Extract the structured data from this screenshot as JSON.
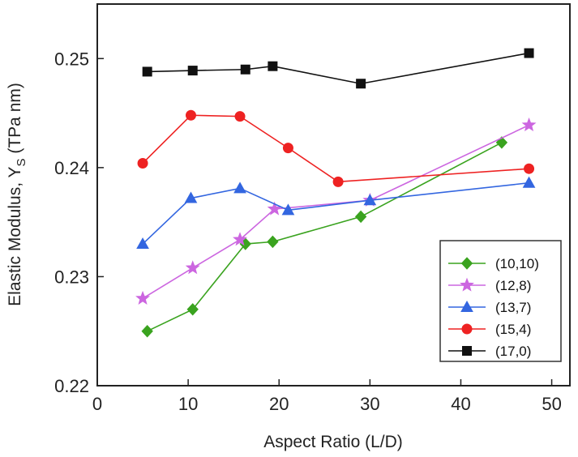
{
  "chart_data": {
    "type": "line",
    "xlabel": "Aspect Ratio (L/D)",
    "ylabel_main": "Elastic Modulus, Y",
    "ylabel_sub": "S",
    "ylabel_unit": " (TPa nm)",
    "xlim": [
      0,
      52
    ],
    "ylim": [
      0.22,
      0.255
    ],
    "x_ticks": [
      0,
      10,
      20,
      30,
      40,
      50
    ],
    "x_tick_labels": [
      "0",
      "10",
      "20",
      "30",
      "40",
      "50"
    ],
    "y_ticks": [
      0.22,
      0.23,
      0.24,
      0.25
    ],
    "y_tick_labels": [
      "0.22",
      "0.23",
      "0.24",
      "0.25"
    ],
    "legend_position": "bottom-right",
    "grid": false,
    "series": [
      {
        "name": "(10,10)",
        "color": "#3aa31f",
        "marker": "diamond",
        "x": [
          5.5,
          10.5,
          16.3,
          19.3,
          29.0,
          44.5
        ],
        "y": [
          0.225,
          0.227,
          0.233,
          0.2332,
          0.2355,
          0.2423
        ]
      },
      {
        "name": "(12,8)",
        "color": "#cc66e0",
        "marker": "star",
        "x": [
          5.0,
          10.5,
          15.7,
          19.5,
          30.0,
          47.5
        ],
        "y": [
          0.228,
          0.2308,
          0.2334,
          0.2362,
          0.237,
          0.2439
        ]
      },
      {
        "name": "(13,7)",
        "color": "#3366e0",
        "marker": "triangle",
        "x": [
          5.0,
          10.3,
          15.7,
          21.0,
          30.0,
          47.5
        ],
        "y": [
          0.233,
          0.2372,
          0.2381,
          0.2361,
          0.237,
          0.2386
        ]
      },
      {
        "name": "(15,4)",
        "color": "#ee2222",
        "marker": "circle",
        "x": [
          5.0,
          10.3,
          15.7,
          21.0,
          26.5,
          47.5
        ],
        "y": [
          0.2404,
          0.2448,
          0.2447,
          0.2418,
          0.2387,
          0.2399
        ]
      },
      {
        "name": "(17,0)",
        "color": "#111111",
        "marker": "square",
        "x": [
          5.5,
          10.5,
          16.3,
          19.3,
          29.0,
          47.5
        ],
        "y": [
          0.2488,
          0.2489,
          0.249,
          0.2493,
          0.2477,
          0.2505
        ]
      }
    ]
  }
}
